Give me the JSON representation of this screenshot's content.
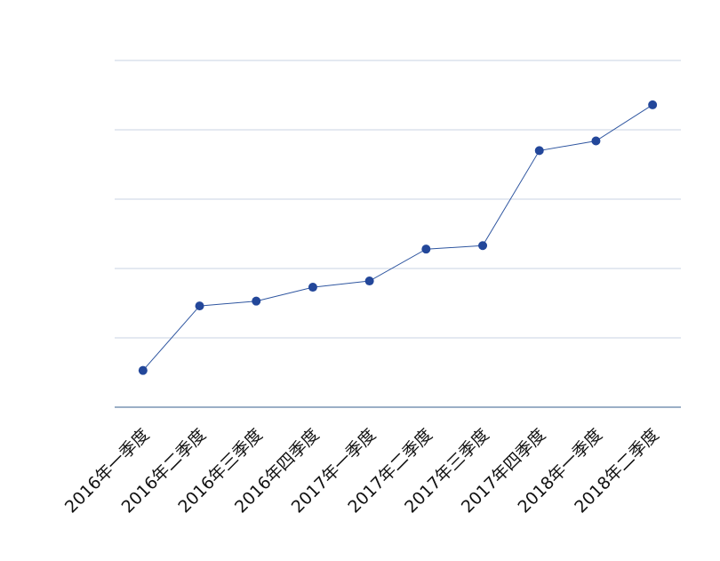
{
  "chart_data": {
    "type": "line",
    "title": "",
    "xlabel": "",
    "ylabel": "",
    "categories": [
      "2016年一季度",
      "2016年二季度",
      "2016年三季度",
      "2016年四季度",
      "2017年一季度",
      "2017年二季度",
      "2017年三季度",
      "2017年四季度",
      "2018年一季度",
      "2018年二季度"
    ],
    "series": [
      {
        "values": [
          0.53,
          1.46,
          1.53,
          1.73,
          1.82,
          2.28,
          2.33,
          3.7,
          3.84,
          4.36
        ]
      }
    ],
    "ylim": [
      0,
      5
    ],
    "y_gridlines": [
      1,
      2,
      3,
      4,
      5
    ],
    "y_tick_labels_shown": false,
    "grid": true,
    "legend": "none",
    "colors": {
      "line": "#2f56a0",
      "marker": "#23479a",
      "grid": "#c9d3e3",
      "axis": "#5f7fa3"
    }
  }
}
